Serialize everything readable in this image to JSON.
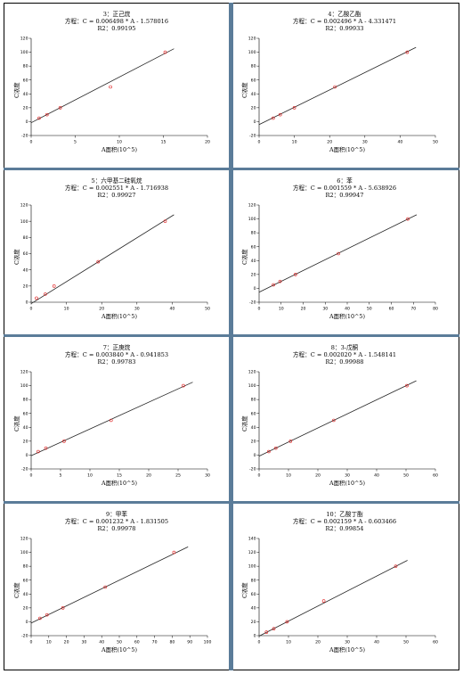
{
  "chart_data": [
    {
      "type": "scatter",
      "title": "3：正己烷",
      "equation": "方程：C = 0.006498 * A - 1.578016",
      "r2": "R2：0.99195",
      "xlabel": "A面积(10^5)",
      "ylabel": "C浓度",
      "xlim": [
        0,
        20
      ],
      "ylim": [
        -20,
        120
      ],
      "xticks": [
        0,
        5,
        10,
        15,
        20
      ],
      "yticks": [
        -20,
        0,
        20,
        40,
        60,
        80,
        100,
        120
      ],
      "x": [
        0.9,
        1.8,
        3.3,
        9.0,
        15.2
      ],
      "y": [
        5,
        10,
        20,
        50,
        100
      ],
      "line": [
        [
          0,
          -1.6
        ],
        [
          16.2,
          105
        ]
      ]
    },
    {
      "type": "scatter",
      "title": "4：乙酸乙酯",
      "equation": "方程：C = 0.002496 * A - 4.331471",
      "r2": "R2：0.99933",
      "xlabel": "A面积(10^5)",
      "ylabel": "C浓度",
      "xlim": [
        0,
        50
      ],
      "ylim": [
        -20,
        120
      ],
      "xticks": [
        0,
        10,
        20,
        30,
        40,
        50
      ],
      "yticks": [
        -20,
        0,
        20,
        40,
        60,
        80,
        100,
        120
      ],
      "x": [
        4,
        6,
        10,
        21.5,
        42
      ],
      "y": [
        5,
        10,
        20,
        50,
        100
      ],
      "line": [
        [
          0,
          -4.3
        ],
        [
          44.5,
          107
        ]
      ]
    },
    {
      "type": "scatter",
      "title": "5：六甲基二硅氧烷",
      "equation": "方程：C = 0.002551 * A - 1.716938",
      "r2": "R2：0.99927",
      "xlabel": "A面积(10^5)",
      "ylabel": "C浓度",
      "xlim": [
        0,
        50
      ],
      "ylim": [
        0,
        120
      ],
      "xticks": [
        0,
        10,
        20,
        30,
        40,
        50
      ],
      "yticks": [
        0,
        20,
        40,
        60,
        80,
        100,
        120
      ],
      "x": [
        1.5,
        4,
        6.5,
        19,
        38
      ],
      "y": [
        5,
        10,
        20,
        50,
        100
      ],
      "line": [
        [
          0,
          -1.7
        ],
        [
          40.5,
          108
        ]
      ]
    },
    {
      "type": "scatter",
      "title": "6：苯",
      "equation": "方程：C = 0.001559 * A - 5.638926",
      "r2": "R2：0.99947",
      "xlabel": "A面积(10^5)",
      "ylabel": "C浓度",
      "xlim": [
        0,
        80
      ],
      "ylim": [
        -20,
        120
      ],
      "xticks": [
        0,
        10,
        20,
        30,
        40,
        50,
        60,
        70,
        80
      ],
      "yticks": [
        -20,
        0,
        20,
        40,
        60,
        80,
        100,
        120
      ],
      "x": [
        6.5,
        9.5,
        16.5,
        36,
        67.5
      ],
      "y": [
        5,
        10,
        20,
        50,
        100
      ],
      "line": [
        [
          0,
          -5.6
        ],
        [
          71.5,
          106
        ]
      ]
    },
    {
      "type": "scatter",
      "title": "7：正庚烷",
      "equation": "方程：C = 0.003840 * A - 0.941853",
      "r2": "R2：0.99783",
      "xlabel": "A面积(10^5)",
      "ylabel": "C浓度",
      "xlim": [
        0,
        30
      ],
      "ylim": [
        -20,
        120
      ],
      "xticks": [
        0,
        5,
        10,
        15,
        20,
        25,
        30
      ],
      "yticks": [
        -20,
        0,
        20,
        40,
        60,
        80,
        100,
        120
      ],
      "x": [
        1.2,
        2.5,
        5.6,
        13.6,
        25.9
      ],
      "y": [
        5,
        10,
        20,
        50,
        100
      ],
      "line": [
        [
          0,
          -0.9
        ],
        [
          27.5,
          105
        ]
      ]
    },
    {
      "type": "scatter",
      "title": "8：3-戊酮",
      "equation": "方程：C = 0.002020 * A - 1.548141",
      "r2": "R2：0.99988",
      "xlabel": "A面积(10^5)",
      "ylabel": "C浓度",
      "xlim": [
        0,
        60
      ],
      "ylim": [
        -20,
        120
      ],
      "xticks": [
        0,
        10,
        20,
        30,
        40,
        50,
        60
      ],
      "yticks": [
        -20,
        0,
        20,
        40,
        60,
        80,
        100,
        120
      ],
      "x": [
        3.3,
        5.7,
        10.7,
        25.4,
        50.3
      ],
      "y": [
        5,
        10,
        20,
        50,
        100
      ],
      "line": [
        [
          0,
          -1.5
        ],
        [
          53.5,
          107
        ]
      ]
    },
    {
      "type": "scatter",
      "title": "9：甲苯",
      "equation": "方程：C = 0.001232 * A - 1.831505",
      "r2": "R2：0.99978",
      "xlabel": "A面积(10^5)",
      "ylabel": "C浓度",
      "xlim": [
        0,
        100
      ],
      "ylim": [
        -20,
        120
      ],
      "xticks": [
        0,
        10,
        20,
        30,
        40,
        50,
        60,
        70,
        80,
        90,
        100
      ],
      "yticks": [
        -20,
        0,
        20,
        40,
        60,
        80,
        100,
        120
      ],
      "x": [
        5,
        9,
        18,
        42,
        81
      ],
      "y": [
        5,
        10,
        20,
        50,
        100
      ],
      "line": [
        [
          0,
          -1.8
        ],
        [
          89,
          108
        ]
      ]
    },
    {
      "type": "scatter",
      "title": "10：乙酸丁酯",
      "equation": "方程：C = 0.002159 * A - 0.603466",
      "r2": "R2：0.99854",
      "xlabel": "A面积(10^5)",
      "ylabel": "C浓度",
      "xlim": [
        0,
        60
      ],
      "ylim": [
        0,
        140
      ],
      "xticks": [
        0,
        10,
        20,
        30,
        40,
        50,
        60
      ],
      "yticks": [
        0,
        20,
        40,
        60,
        80,
        100,
        120,
        140
      ],
      "x": [
        2.5,
        5,
        9.5,
        22,
        46.5
      ],
      "y": [
        5,
        10,
        20,
        50,
        100
      ],
      "line": [
        [
          0,
          -0.6
        ],
        [
          50.5,
          108.5
        ]
      ]
    }
  ]
}
